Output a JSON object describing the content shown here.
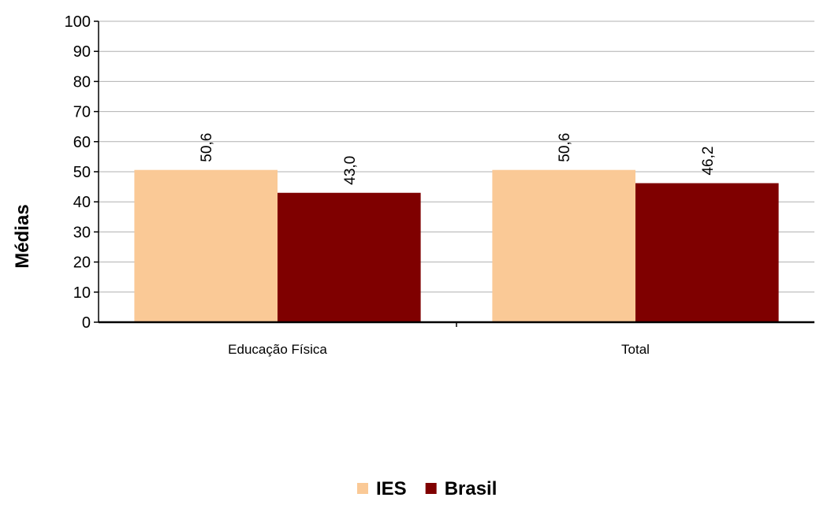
{
  "chart_data": {
    "type": "bar",
    "categories": [
      "Educação Física",
      "Total"
    ],
    "series": [
      {
        "name": "IES",
        "values": [
          50.6,
          50.6
        ],
        "labels": [
          "50,6",
          "50,6"
        ],
        "color": "#FAC996"
      },
      {
        "name": "Brasil",
        "values": [
          43.0,
          46.2
        ],
        "labels": [
          "43,0",
          "46,2"
        ],
        "color": "#7F0000"
      }
    ],
    "title": "",
    "xlabel": "",
    "ylabel": "Médias",
    "ylim": [
      0,
      100
    ],
    "yticks": [
      0,
      10,
      20,
      30,
      40,
      50,
      60,
      70,
      80,
      90,
      100
    ],
    "grid": true,
    "legend_position": "bottom"
  }
}
